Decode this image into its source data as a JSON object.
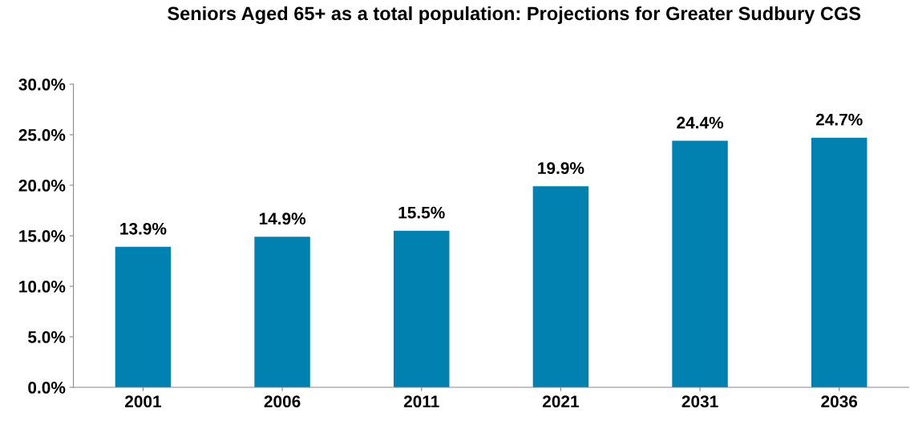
{
  "chart_data": {
    "type": "bar",
    "title": "Seniors Aged 65+ as a total population: Projections for Greater Sudbury CGS",
    "categories": [
      "2001",
      "2006",
      "2011",
      "2021",
      "2031",
      "2036"
    ],
    "values": [
      13.9,
      14.9,
      15.5,
      19.9,
      24.4,
      24.7
    ],
    "value_labels": [
      "13.9%",
      "14.9%",
      "15.5%",
      "19.9%",
      "24.4%",
      "24.7%"
    ],
    "color": "#0081b0",
    "ylim": [
      0,
      30
    ],
    "yticks": [
      {
        "value": 0,
        "label": "0.0%"
      },
      {
        "value": 5,
        "label": "5.0%"
      },
      {
        "value": 10,
        "label": "10.0%"
      },
      {
        "value": 15,
        "label": "15.0%"
      },
      {
        "value": 20,
        "label": "20.0%"
      },
      {
        "value": 25,
        "label": "25.0%"
      },
      {
        "value": 30,
        "label": "30.0%"
      }
    ],
    "grid": false,
    "legend": false
  }
}
